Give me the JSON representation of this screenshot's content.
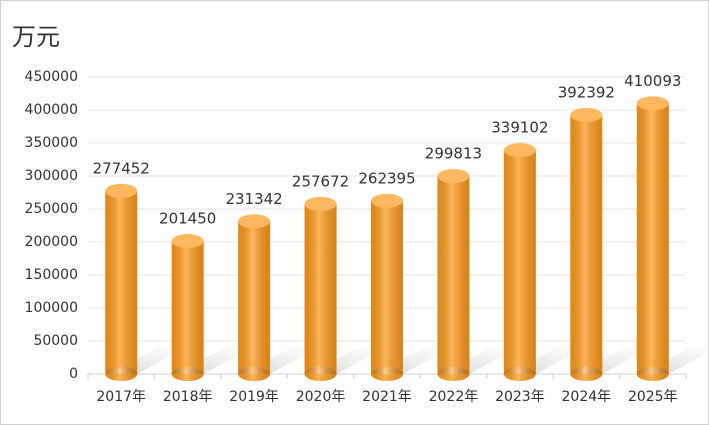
{
  "chart_data": {
    "type": "bar",
    "title": "万元",
    "categories": [
      "2017年",
      "2018年",
      "2019年",
      "2020年",
      "2021年",
      "2022年",
      "2023年",
      "2024年",
      "2025年"
    ],
    "values": [
      277452,
      201450,
      231342,
      257672,
      262395,
      299813,
      339102,
      392392,
      410093
    ],
    "color": "#ff9a1a",
    "ylim": [
      0,
      450000
    ],
    "yticks": [
      0,
      50000,
      100000,
      150000,
      200000,
      250000,
      300000,
      350000,
      400000,
      450000
    ],
    "grid": true
  }
}
